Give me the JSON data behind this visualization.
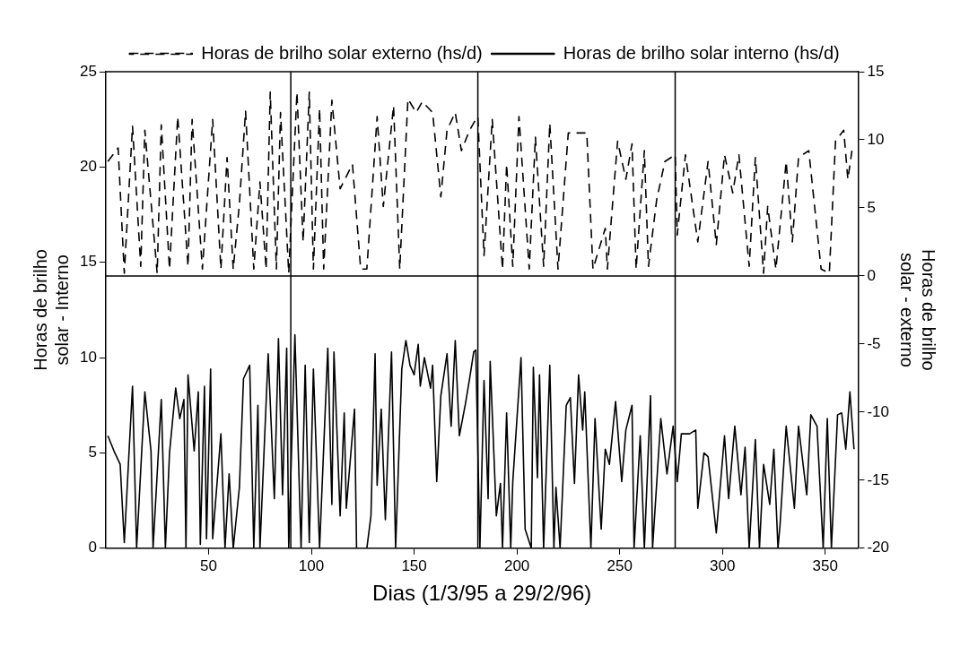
{
  "chart_data": {
    "type": "line",
    "xlabel": "Dias (1/3/95 a 29/2/96)",
    "ylabel": "Horas de brilho solar - Interno",
    "y2label": "Horas de brilho solar - externo",
    "xlim": [
      0,
      366
    ],
    "xticks": [
      50,
      100,
      150,
      200,
      250,
      300,
      350
    ],
    "ylim": [
      0,
      25
    ],
    "yticks": [
      0,
      5,
      10,
      15,
      20,
      25
    ],
    "y2lim": [
      -20,
      15
    ],
    "y2ticks": [
      -20,
      -15,
      -10,
      -5,
      0,
      5,
      10,
      15
    ],
    "grid": false,
    "legend": "top",
    "marker": "none",
    "ref_lines": [
      {
        "axis": "y2",
        "value": 0
      },
      {
        "axis": "x",
        "value": 90
      },
      {
        "axis": "x",
        "value": 181
      },
      {
        "axis": "x",
        "value": 277
      }
    ],
    "series": [
      {
        "name": "Horas de brilho solar externo (hs/d)",
        "color": "#000000",
        "axis": "y2",
        "line_style": "dashed",
        "x": [
          1,
          6,
          9,
          13,
          17,
          19,
          25,
          27,
          31,
          35,
          40,
          42,
          47,
          52,
          56,
          59,
          62,
          65,
          68,
          72,
          75,
          78,
          80,
          83,
          85,
          89,
          93,
          96,
          99,
          101,
          104,
          106,
          110,
          114,
          120,
          124,
          127,
          132,
          135,
          140,
          143,
          147,
          151,
          154,
          159,
          163,
          166,
          170,
          173,
          177,
          180,
          181,
          184,
          188,
          193,
          195,
          198,
          201,
          206,
          209,
          213,
          216,
          220,
          225,
          230,
          234,
          237,
          243,
          244,
          249,
          253,
          256,
          258,
          262,
          264,
          268,
          272,
          277,
          278,
          282,
          288,
          293,
          297,
          301,
          305,
          308,
          313,
          316,
          320,
          322,
          326,
          331,
          334,
          337,
          342,
          348,
          352,
          355,
          359,
          361,
          363
        ],
        "values": [
          8.4,
          9.4,
          0.2,
          11,
          0.7,
          10.7,
          0.2,
          11.1,
          0.5,
          11.7,
          0.7,
          11.5,
          0.5,
          11.5,
          0.5,
          8.7,
          0.5,
          5.3,
          12.1,
          0.5,
          6.9,
          0.5,
          13.5,
          0.5,
          12,
          0.2,
          13.5,
          2.5,
          13.5,
          0.5,
          12.3,
          0.5,
          12.9,
          6.4,
          8.2,
          0.5,
          0.5,
          11.7,
          5.1,
          12.5,
          0.5,
          13,
          12,
          12.8,
          12,
          5.8,
          10.7,
          12,
          9.2,
          10.7,
          11.5,
          11.7,
          1.5,
          11.5,
          0.5,
          8.2,
          0.7,
          11.7,
          0.5,
          10.2,
          0.7,
          11.2,
          0.5,
          10.5,
          10.5,
          10.5,
          0.5,
          3.5,
          0.5,
          9.9,
          7.1,
          9.7,
          0.5,
          9.2,
          0.7,
          5.6,
          8.4,
          8.9,
          3,
          8.9,
          2.5,
          8.4,
          2.3,
          8.9,
          6.1,
          8.9,
          0.7,
          8.7,
          0.2,
          5.1,
          0.5,
          8.4,
          2.5,
          8.7,
          9.2,
          0.5,
          0.2,
          9.9,
          10.7,
          7.1,
          9.2
        ]
      },
      {
        "name": "Horas de brilho solar interno (hs/d)",
        "color": "#000000",
        "axis": "y",
        "line_style": "solid",
        "x": [
          1,
          4,
          7,
          9,
          13,
          15,
          19,
          22,
          23,
          27,
          29,
          31,
          34,
          36,
          38,
          39,
          40,
          43,
          45,
          46,
          48,
          49,
          51,
          52,
          56,
          58,
          60,
          62,
          65,
          67,
          70,
          72,
          74,
          75,
          79,
          82,
          84,
          86,
          88,
          89,
          92,
          95,
          97,
          99,
          101,
          104,
          108,
          110,
          111,
          114,
          116,
          117,
          121,
          122,
          127,
          129,
          131,
          132,
          134,
          136,
          139,
          141,
          144,
          146,
          148,
          150,
          152,
          153,
          155,
          158,
          159,
          161,
          163,
          166,
          168,
          170,
          172,
          175,
          177,
          179,
          180,
          182,
          184,
          186,
          187,
          190,
          192,
          193,
          195,
          197,
          198,
          202,
          204,
          207,
          208,
          210,
          211,
          213,
          216,
          218,
          219,
          221,
          224,
          226,
          228,
          230,
          232,
          233,
          236,
          238,
          241,
          243,
          245,
          248,
          251,
          253,
          256,
          257,
          260,
          262,
          265,
          266,
          270,
          273,
          276,
          278,
          280,
          284,
          287,
          288,
          291,
          293,
          297,
          301,
          303,
          306,
          309,
          311,
          313,
          316,
          318,
          320,
          323,
          325,
          327,
          328,
          331,
          335,
          337,
          341,
          343,
          346,
          349,
          351,
          353,
          356,
          358,
          360,
          362,
          364
        ],
        "values": [
          5.9,
          5.1,
          4.4,
          0.3,
          8.5,
          0,
          8.2,
          5.1,
          0,
          7.8,
          0,
          5,
          8.4,
          6.8,
          7.8,
          0,
          9.1,
          5.1,
          8.2,
          0.2,
          8.5,
          0.5,
          9.4,
          0.5,
          6,
          0,
          3.9,
          0,
          3.2,
          8.9,
          9.6,
          0,
          7.5,
          0,
          10.2,
          2.6,
          11,
          2.8,
          10.5,
          0,
          11.2,
          0,
          9.6,
          0.3,
          9.4,
          0,
          10.5,
          2.3,
          10.3,
          1.7,
          7.1,
          2.1,
          7.3,
          0,
          0,
          1.7,
          10.2,
          3.3,
          7.3,
          1.5,
          10.3,
          0,
          9.4,
          10.9,
          9.6,
          9.1,
          10.7,
          8.5,
          10,
          8.4,
          9.6,
          3.5,
          8,
          10.2,
          6.4,
          10.9,
          5.9,
          7.6,
          8.9,
          10.3,
          10.4,
          0,
          8.8,
          2.6,
          9.8,
          1.7,
          3.4,
          0,
          7.1,
          0,
          3.5,
          10,
          1,
          0,
          9.5,
          3.7,
          9.1,
          0,
          9.6,
          0,
          3.2,
          0,
          7.5,
          7.9,
          3.4,
          9.1,
          6.2,
          8.2,
          0,
          6.8,
          1,
          5.2,
          4.4,
          7.7,
          3.5,
          6.2,
          7.5,
          0,
          5.9,
          0,
          8,
          0,
          6.8,
          3.9,
          6.4,
          3.5,
          6,
          6,
          6.2,
          2.1,
          5,
          4.8,
          0.8,
          5.9,
          2.6,
          6.4,
          2.8,
          5.3,
          0,
          5.7,
          0,
          4.4,
          2.3,
          5.2,
          0,
          1.2,
          6.4,
          2.1,
          6.4,
          2.8,
          7,
          6.4,
          0,
          6.8,
          0,
          7,
          7.1,
          5.2,
          8.2,
          5.2
        ]
      }
    ]
  }
}
